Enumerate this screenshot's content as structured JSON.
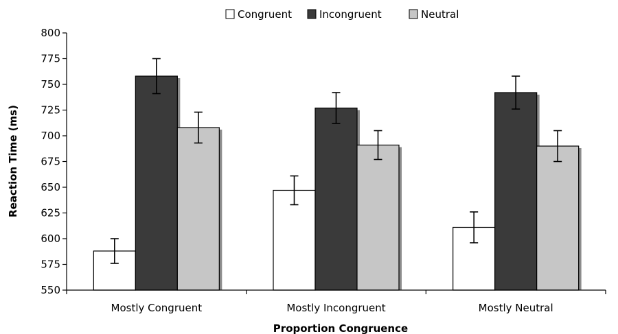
{
  "chart_data": {
    "type": "bar",
    "xlabel": "Proportion Congruence",
    "ylabel": "Reaction Time (ms)",
    "ylim": [
      550,
      800
    ],
    "yticks": [
      550,
      575,
      600,
      625,
      650,
      675,
      700,
      725,
      750,
      775,
      800
    ],
    "categories": [
      "Mostly Congruent",
      "Mostly Incongruent",
      "Mostly Neutral"
    ],
    "legend_position": "top-center",
    "grid": false,
    "series": [
      {
        "name": "Congruent",
        "color": "#ffffff",
        "values": [
          588,
          647,
          611
        ],
        "error": [
          12,
          14,
          15
        ]
      },
      {
        "name": "Incongruent",
        "color": "#3a3a3a",
        "values": [
          758,
          727,
          742
        ],
        "error": [
          17,
          15,
          16
        ]
      },
      {
        "name": "Neutral",
        "color": "#c6c6c6",
        "values": [
          708,
          691,
          690
        ],
        "error": [
          15,
          14,
          15
        ]
      }
    ]
  }
}
